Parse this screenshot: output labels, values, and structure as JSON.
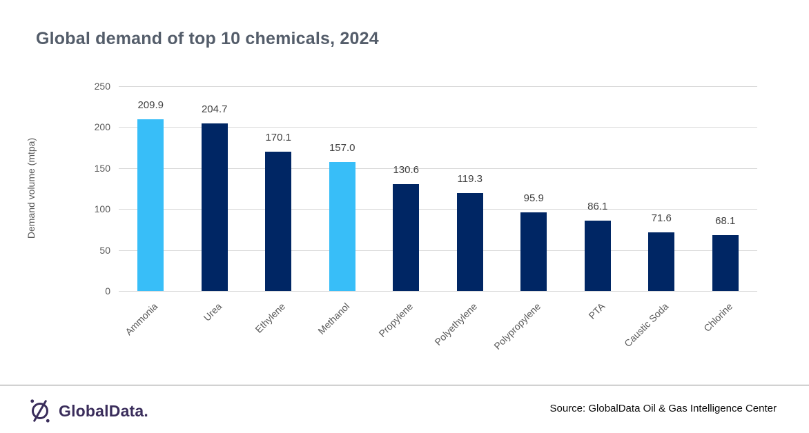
{
  "page": {
    "title": "Global demand of top 10 chemicals, 2024"
  },
  "chart_data": {
    "type": "bar",
    "title": "Global demand of top 10 chemicals, 2024",
    "xlabel": "",
    "ylabel": "Demand volume (mtpa)",
    "categories": [
      "Ammonia",
      "Urea",
      "Ethylene",
      "Methanol",
      "Propylene",
      "Polyethylene",
      "Polypropylene",
      "PTA",
      "Caustic Soda",
      "Chlorine"
    ],
    "values": [
      209.9,
      204.7,
      170.1,
      157.0,
      130.6,
      119.3,
      95.9,
      86.1,
      71.6,
      68.1
    ],
    "value_labels": [
      "209.9",
      "204.7",
      "170.1",
      "157.0",
      "130.6",
      "119.3",
      "95.9",
      "86.1",
      "71.6",
      "68.1"
    ],
    "highlighted": [
      true,
      false,
      false,
      true,
      false,
      false,
      false,
      false,
      false,
      false
    ],
    "ylim": [
      0,
      250
    ],
    "yticks": [
      0,
      50,
      100,
      150,
      200,
      250
    ],
    "grid": true,
    "legend": false,
    "colors": {
      "bar_default": "#002664",
      "bar_highlight": "#38BEF8",
      "gridline": "#D9D9D9",
      "tick_text": "#595959",
      "value_text": "#404040",
      "title_text": "#545D6A"
    }
  },
  "footer": {
    "logo_text": "GlobalData.",
    "logo_color": "#3A2D5B",
    "source": "Source: GlobalData Oil & Gas Intelligence Center"
  }
}
